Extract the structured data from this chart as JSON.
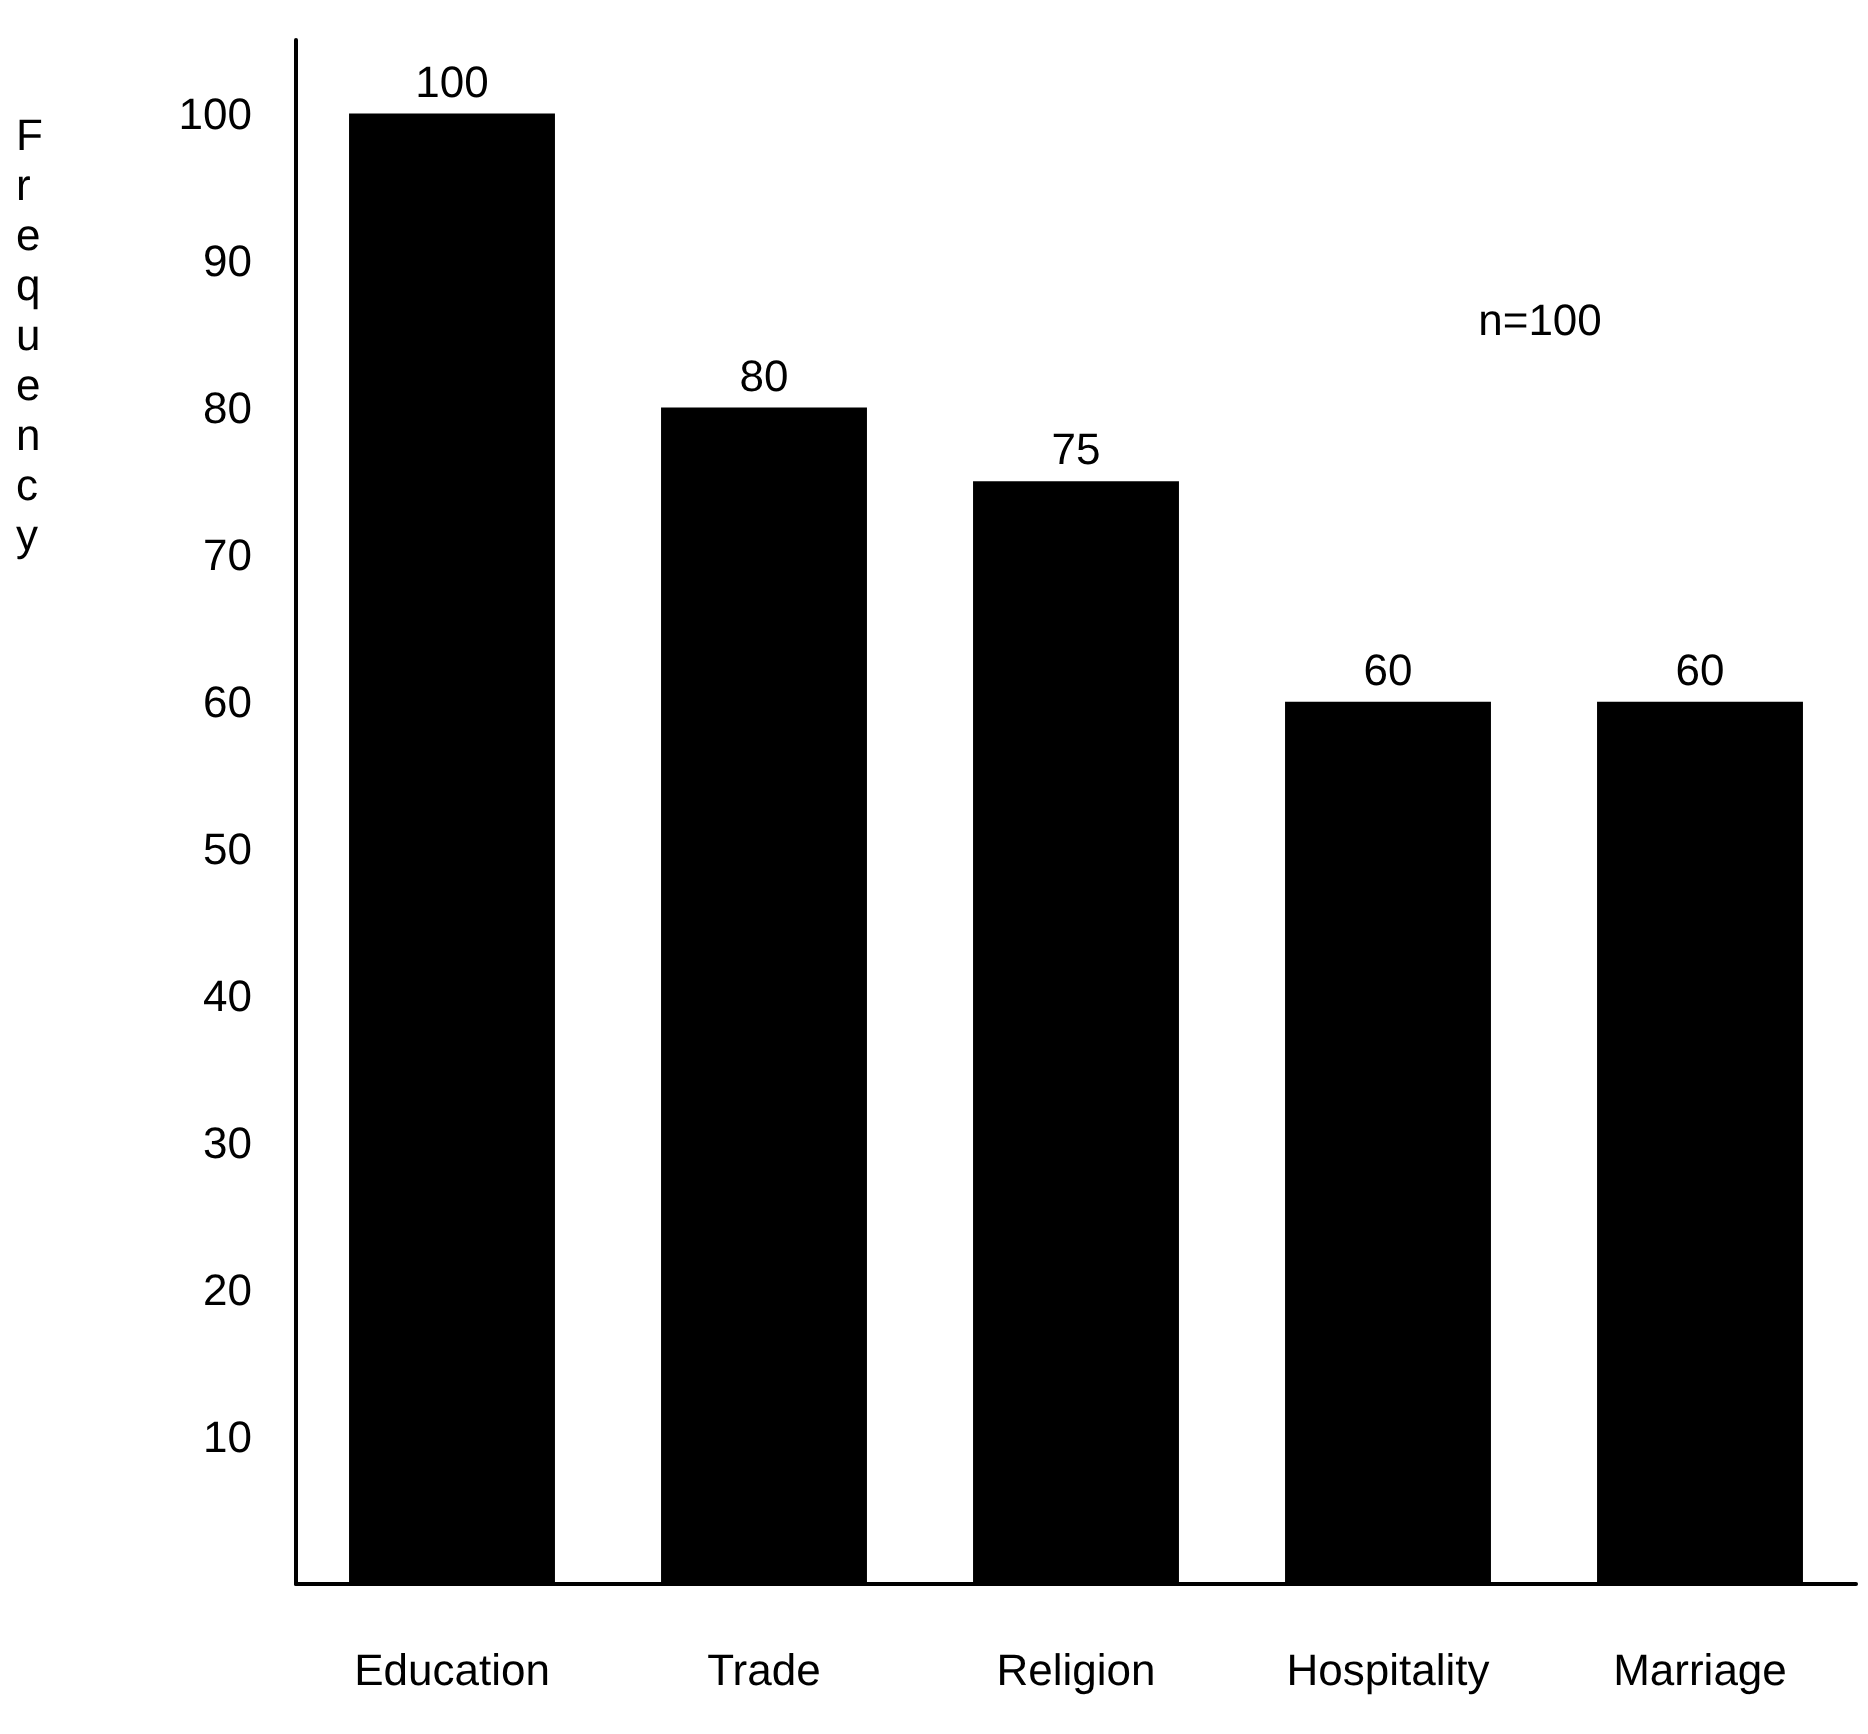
{
  "chart_data": {
    "type": "bar",
    "ylabel": "Frequency",
    "categories": [
      "Education",
      "Trade",
      "Religion",
      "Hospitality",
      "Marriage"
    ],
    "values": [
      100,
      80,
      75,
      60,
      60
    ],
    "color": "#000000",
    "data_labels": true,
    "ylim": [
      0,
      105
    ],
    "yticks": [
      10,
      20,
      30,
      40,
      50,
      60,
      70,
      80,
      90,
      100
    ],
    "grid": false,
    "annotations": [
      "n=100"
    ]
  }
}
